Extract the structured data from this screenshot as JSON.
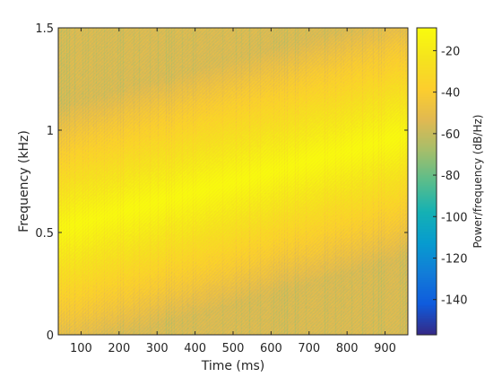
{
  "chart_data": {
    "type": "heatmap",
    "title": "",
    "xlabel": "Time (ms)",
    "ylabel": "Frequency (kHz)",
    "colorbar_label": "Power/frequency (dB/Hz)",
    "colormap": "parula",
    "xlim": [
      40,
      960
    ],
    "ylim": [
      0,
      1.5
    ],
    "clim": [
      -157,
      -9
    ],
    "x_ticks": [
      100,
      200,
      300,
      400,
      500,
      600,
      700,
      800,
      900
    ],
    "y_ticks": [
      0,
      0.5,
      1,
      1.5
    ],
    "y_tick_labels": [
      "0",
      "0.5",
      "1",
      "1.5"
    ],
    "colorbar_ticks": [
      -20,
      -40,
      -60,
      -80,
      -100,
      -120,
      -140
    ],
    "ridge": {
      "description_free": true,
      "start": {
        "time": 40,
        "frequency": 0.52
      },
      "end": {
        "time": 960,
        "frequency": 0.98
      },
      "peak_db": -10
    },
    "background_db": -55
  }
}
